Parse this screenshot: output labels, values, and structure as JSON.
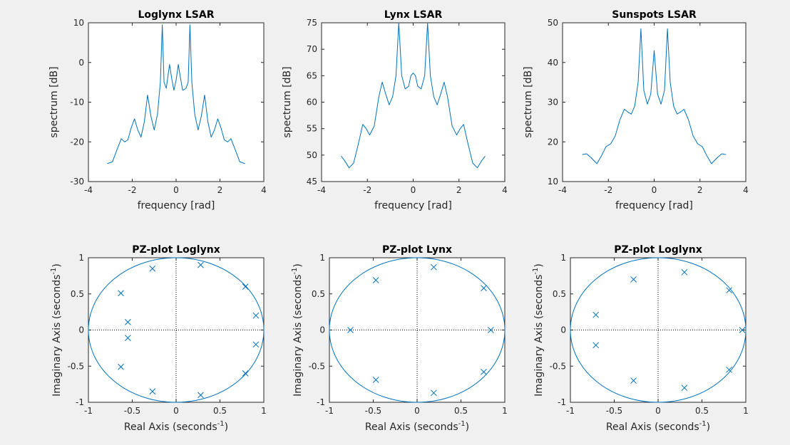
{
  "figure": {
    "background": "#f0f0f0",
    "line_color": "#0072bd"
  },
  "chart_data": [
    {
      "type": "line",
      "title": "Loglynx LSAR",
      "xlabel": "frequency [rad]",
      "ylabel": "spectrum [dB]",
      "xlim": [
        -4,
        4
      ],
      "ylim": [
        -30,
        10
      ],
      "xticks": [
        "-4",
        "-2",
        "0",
        "2",
        "4"
      ],
      "yticks": [
        "-30",
        "-20",
        "-10",
        "0",
        "10"
      ],
      "grid": false,
      "x": [
        -3.14,
        -2.9,
        -2.7,
        -2.5,
        -2.35,
        -2.2,
        -2.05,
        -1.9,
        -1.75,
        -1.6,
        -1.45,
        -1.3,
        -1.15,
        -1.0,
        -0.85,
        -0.72,
        -0.63,
        -0.55,
        -0.45,
        -0.3,
        -0.2,
        -0.1,
        0.0,
        0.1,
        0.2,
        0.3,
        0.45,
        0.55,
        0.63,
        0.72,
        0.85,
        1.0,
        1.15,
        1.3,
        1.45,
        1.6,
        1.75,
        1.9,
        2.05,
        2.2,
        2.35,
        2.5,
        2.7,
        2.9,
        3.14
      ],
      "y": [
        -25.5,
        -25,
        -22,
        -19.2,
        -20,
        -19.5,
        -16.5,
        -14.2,
        -17,
        -18.8,
        -15,
        -8.2,
        -13.5,
        -17,
        -13,
        -5,
        9.5,
        -5,
        -6.5,
        -0.5,
        -4,
        -7,
        -4.5,
        -0.5,
        -4,
        -7,
        -6.5,
        -5,
        9.5,
        -5,
        -13,
        -17,
        -13.5,
        -8.2,
        -15,
        -18.8,
        -17,
        -14.2,
        -16.5,
        -19.5,
        -20,
        -19.2,
        -22,
        -25,
        -25.5
      ]
    },
    {
      "type": "line",
      "title": "Lynx LSAR",
      "xlabel": "frequency [rad]",
      "ylabel": "spectrum [dB]",
      "xlim": [
        -4,
        4
      ],
      "ylim": [
        45,
        75
      ],
      "xticks": [
        "-4",
        "-2",
        "0",
        "2",
        "4"
      ],
      "yticks": [
        "45",
        "50",
        "55",
        "60",
        "65",
        "70",
        "75"
      ],
      "grid": false,
      "x": [
        -3.14,
        -3.0,
        -2.8,
        -2.6,
        -2.4,
        -2.2,
        -2.05,
        -1.9,
        -1.7,
        -1.5,
        -1.35,
        -1.2,
        -1.05,
        -0.9,
        -0.75,
        -0.63,
        -0.5,
        -0.35,
        -0.2,
        -0.1,
        0.0,
        0.1,
        0.2,
        0.35,
        0.5,
        0.63,
        0.75,
        0.9,
        1.05,
        1.2,
        1.35,
        1.5,
        1.7,
        1.9,
        2.05,
        2.2,
        2.4,
        2.6,
        2.8,
        3.0,
        3.14
      ],
      "y": [
        49.8,
        49,
        47.6,
        48.5,
        52,
        55.8,
        55,
        53.8,
        55.5,
        61,
        63.8,
        61.5,
        59.5,
        61,
        65,
        75,
        65,
        62.5,
        63,
        65,
        65.5,
        65,
        63,
        62.5,
        65,
        75,
        65,
        61,
        59.5,
        61.5,
        63.8,
        61,
        55.5,
        53.8,
        55,
        55.8,
        52,
        48.5,
        47.6,
        49,
        49.8
      ]
    },
    {
      "type": "line",
      "title": "Sunspots LSAR",
      "xlabel": "frequency [rad]",
      "ylabel": "spectrum [dB]",
      "xlim": [
        -4,
        4
      ],
      "ylim": [
        10,
        50
      ],
      "xticks": [
        "-4",
        "-2",
        "0",
        "2",
        "4"
      ],
      "yticks": [
        "10",
        "20",
        "30",
        "40",
        "50"
      ],
      "grid": false,
      "x": [
        -3.14,
        -2.95,
        -2.75,
        -2.5,
        -2.3,
        -2.1,
        -1.9,
        -1.7,
        -1.5,
        -1.3,
        -1.15,
        -1.0,
        -0.85,
        -0.7,
        -0.58,
        -0.45,
        -0.3,
        -0.15,
        0.0,
        0.15,
        0.3,
        0.45,
        0.58,
        0.7,
        0.85,
        1.0,
        1.15,
        1.3,
        1.5,
        1.7,
        1.9,
        2.1,
        2.3,
        2.5,
        2.75,
        2.95,
        3.14
      ],
      "y": [
        16.8,
        17,
        16,
        14.5,
        16.5,
        18.8,
        19.5,
        21.5,
        25.5,
        28.2,
        27.5,
        27,
        29,
        35,
        48.5,
        33,
        29.5,
        32,
        43,
        32,
        29.5,
        33,
        48.5,
        35,
        29,
        27,
        27.5,
        28.2,
        25.5,
        21.5,
        19.5,
        18.8,
        16.5,
        14.5,
        16,
        17,
        16.8
      ]
    },
    {
      "type": "scatter",
      "title": "PZ-plot Loglynx",
      "xlabel_main": "Real Axis (seconds",
      "ylabel_main": "Imaginary Axis (seconds",
      "unit_exponent": "-1",
      "label_close": ")",
      "xlim": [
        -1,
        1
      ],
      "ylim": [
        -1,
        1
      ],
      "xticks": [
        "-1",
        "-0.5",
        "0",
        "0.5",
        "1"
      ],
      "yticks": [
        "-1",
        "-0.5",
        "0",
        "0.5",
        "1"
      ],
      "unit_circle": true,
      "marker": "x",
      "points": [
        [
          -0.27,
          0.85
        ],
        [
          0.28,
          0.9
        ],
        [
          0.79,
          0.6
        ],
        [
          0.91,
          0.2
        ],
        [
          -0.63,
          0.51
        ],
        [
          -0.55,
          0.11
        ],
        [
          -0.55,
          -0.11
        ],
        [
          -0.63,
          -0.51
        ],
        [
          0.91,
          -0.2
        ],
        [
          0.79,
          -0.6
        ],
        [
          -0.27,
          -0.85
        ],
        [
          0.28,
          -0.9
        ]
      ]
    },
    {
      "type": "scatter",
      "title": "PZ-plot Lynx",
      "xlabel_main": "Real Axis (seconds",
      "ylabel_main": "Imaginary Axis (seconds",
      "unit_exponent": "-1",
      "label_close": ")",
      "xlim": [
        -1,
        1
      ],
      "ylim": [
        -1,
        1
      ],
      "xticks": [
        "-1",
        "-0.5",
        "0",
        "0.5",
        "1"
      ],
      "yticks": [
        "-1",
        "-0.5",
        "0",
        "0.5",
        "1"
      ],
      "unit_circle": true,
      "marker": "x",
      "points": [
        [
          -0.47,
          0.69
        ],
        [
          0.19,
          0.87
        ],
        [
          0.76,
          0.58
        ],
        [
          0.84,
          0.0
        ],
        [
          -0.76,
          0.0
        ],
        [
          -0.47,
          -0.69
        ],
        [
          0.19,
          -0.87
        ],
        [
          0.76,
          -0.58
        ]
      ]
    },
    {
      "type": "scatter",
      "title": "PZ-plot Loglynx",
      "xlabel_main": "Real Axis (seconds",
      "ylabel_main": "Imaginary Axis (seconds",
      "unit_exponent": "-1",
      "label_close": ")",
      "xlim": [
        -1,
        1
      ],
      "ylim": [
        -1,
        1
      ],
      "xticks": [
        "-1",
        "-0.5",
        "0",
        "0.5",
        "1"
      ],
      "yticks": [
        "-1",
        "-0.5",
        "0",
        "0.5",
        "1"
      ],
      "unit_circle": true,
      "marker": "x",
      "points": [
        [
          -0.28,
          0.7
        ],
        [
          0.3,
          0.8
        ],
        [
          0.81,
          0.55
        ],
        [
          0.96,
          0.0
        ],
        [
          -0.71,
          0.21
        ],
        [
          -0.71,
          -0.21
        ],
        [
          -0.28,
          -0.7
        ],
        [
          0.3,
          -0.8
        ],
        [
          0.81,
          -0.55
        ]
      ]
    }
  ]
}
